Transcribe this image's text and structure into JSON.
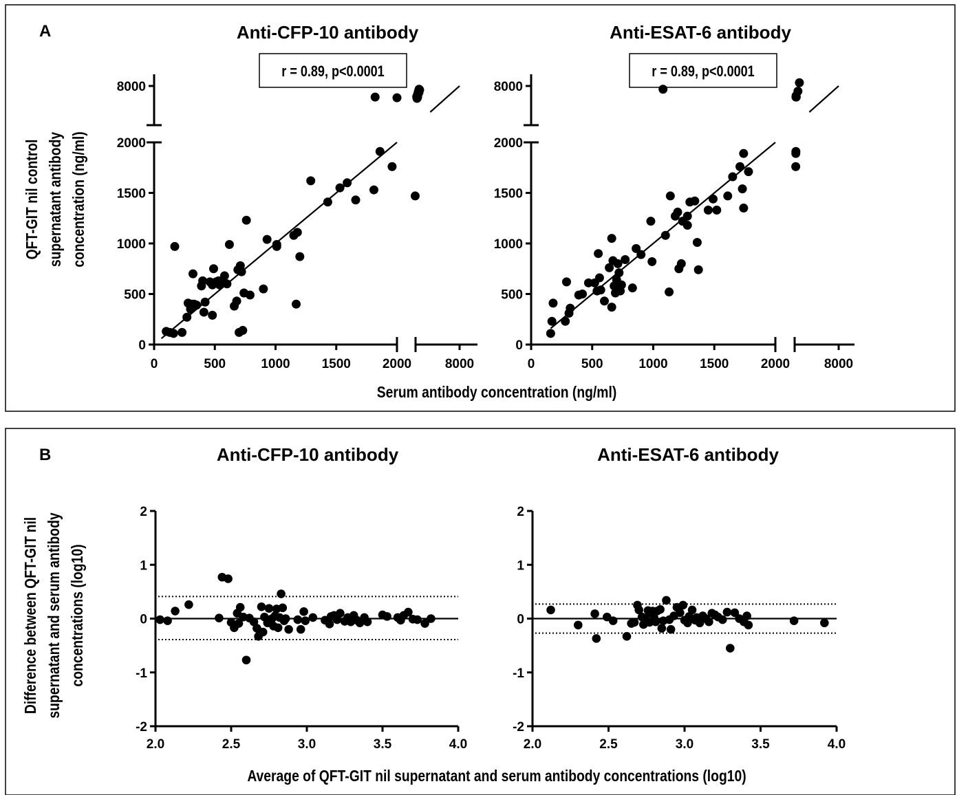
{
  "panels": {
    "a": {
      "letter": "A",
      "xlabel": "Serum antibody concentration (ng/ml)",
      "ylabel_lines": [
        "QFT-GIT nil control",
        "supernatant antibody",
        "concentration (ng/ml)"
      ]
    },
    "b": {
      "letter": "B",
      "xlabel": "Average of QFT-GIT nil supernatant and serum antibody concentrations (log10)",
      "ylabel_lines": [
        "Difference between QFT-GIT nil",
        "supernatant and serum antibody",
        "concentrations (log10)"
      ]
    }
  },
  "chart_data": [
    {
      "type": "scatter",
      "panel": "A",
      "title": "Anti-CFP-10 antibody",
      "annotation": "r = 0.89, p<0.0001",
      "axis_break": true,
      "x_ticks": [
        "0",
        "500",
        "1000",
        "1500",
        "2000",
        "8000"
      ],
      "y_ticks": [
        "0",
        "500",
        "1000",
        "1500",
        "2000",
        "8000"
      ],
      "xlim": [
        0,
        2000
      ],
      "ylim": [
        0,
        2000
      ],
      "upper_segment": {
        "ticks": [
          8000
        ],
        "approx_range": [
          4000,
          8000
        ]
      },
      "regression_line": {
        "from": [
          60,
          60
        ],
        "to": [
          2000,
          2000
        ],
        "upper_from": [
          4000,
          4000
        ],
        "upper_to": [
          8000,
          8000
        ]
      },
      "points": [
        [
          100,
          130
        ],
        [
          130,
          120
        ],
        [
          160,
          110
        ],
        [
          170,
          970
        ],
        [
          230,
          120
        ],
        [
          270,
          270
        ],
        [
          280,
          410
        ],
        [
          300,
          350
        ],
        [
          310,
          400
        ],
        [
          330,
          400
        ],
        [
          320,
          700
        ],
        [
          350,
          390
        ],
        [
          390,
          580
        ],
        [
          400,
          630
        ],
        [
          410,
          320
        ],
        [
          420,
          420
        ],
        [
          460,
          620
        ],
        [
          480,
          590
        ],
        [
          480,
          290
        ],
        [
          490,
          750
        ],
        [
          510,
          620
        ],
        [
          530,
          630
        ],
        [
          540,
          590
        ],
        [
          560,
          610
        ],
        [
          580,
          680
        ],
        [
          600,
          600
        ],
        [
          620,
          990
        ],
        [
          660,
          380
        ],
        [
          680,
          430
        ],
        [
          690,
          740
        ],
        [
          700,
          120
        ],
        [
          710,
          780
        ],
        [
          720,
          720
        ],
        [
          730,
          140
        ],
        [
          740,
          510
        ],
        [
          760,
          1230
        ],
        [
          790,
          490
        ],
        [
          900,
          550
        ],
        [
          930,
          1040
        ],
        [
          1010,
          990
        ],
        [
          1010,
          970
        ],
        [
          1150,
          1080
        ],
        [
          1170,
          400
        ],
        [
          1180,
          1110
        ],
        [
          1200,
          870
        ],
        [
          1290,
          1620
        ],
        [
          1430,
          1410
        ],
        [
          1530,
          1550
        ],
        [
          1590,
          1600
        ],
        [
          1660,
          1430
        ],
        [
          1810,
          1530
        ],
        [
          1860,
          1910
        ],
        [
          1960,
          1760
        ],
        [
          2150,
          1470
        ]
      ],
      "upper_points": [
        [
          1820,
          6300
        ],
        [
          2000,
          6200
        ],
        [
          2160,
          6300
        ],
        [
          2180,
          6450
        ],
        [
          2200,
          6100
        ],
        [
          2220,
          6350
        ],
        [
          2250,
          6200
        ],
        [
          2280,
          6300
        ],
        [
          2300,
          6700
        ],
        [
          2330,
          6900
        ],
        [
          2360,
          6800
        ],
        [
          2400,
          7200
        ],
        [
          2430,
          7100
        ],
        [
          2460,
          7000
        ],
        [
          2480,
          7500
        ],
        [
          2520,
          7350
        ],
        [
          2560,
          7400
        ]
      ]
    },
    {
      "type": "scatter",
      "panel": "A",
      "title": "Anti-ESAT-6 antibody",
      "annotation": "r = 0.89, p<0.0001",
      "axis_break": true,
      "x_ticks": [
        "0",
        "500",
        "1000",
        "1500",
        "2000",
        "8000"
      ],
      "y_ticks": [
        "0",
        "500",
        "1000",
        "1500",
        "2000",
        "8000"
      ],
      "xlim": [
        0,
        2000
      ],
      "ylim": [
        0,
        2000
      ],
      "upper_segment": {
        "ticks": [
          8000
        ],
        "approx_range": [
          4000,
          8000
        ]
      },
      "regression_line": {
        "from": [
          160,
          160
        ],
        "to": [
          2000,
          2000
        ],
        "upper_from": [
          4000,
          4000
        ],
        "upper_to": [
          8000,
          8000
        ]
      },
      "points": [
        [
          160,
          110
        ],
        [
          170,
          230
        ],
        [
          180,
          410
        ],
        [
          280,
          230
        ],
        [
          290,
          620
        ],
        [
          310,
          310
        ],
        [
          320,
          360
        ],
        [
          390,
          490
        ],
        [
          420,
          500
        ],
        [
          470,
          610
        ],
        [
          520,
          610
        ],
        [
          540,
          530
        ],
        [
          550,
          900
        ],
        [
          560,
          660
        ],
        [
          570,
          540
        ],
        [
          600,
          430
        ],
        [
          640,
          760
        ],
        [
          660,
          370
        ],
        [
          660,
          1050
        ],
        [
          670,
          830
        ],
        [
          680,
          580
        ],
        [
          690,
          510
        ],
        [
          700,
          640
        ],
        [
          710,
          800
        ],
        [
          720,
          710
        ],
        [
          730,
          530
        ],
        [
          740,
          590
        ],
        [
          770,
          840
        ],
        [
          830,
          560
        ],
        [
          860,
          950
        ],
        [
          900,
          890
        ],
        [
          980,
          1220
        ],
        [
          990,
          820
        ],
        [
          1100,
          1080
        ],
        [
          1130,
          520
        ],
        [
          1140,
          1470
        ],
        [
          1180,
          1270
        ],
        [
          1200,
          1310
        ],
        [
          1210,
          750
        ],
        [
          1230,
          800
        ],
        [
          1240,
          1220
        ],
        [
          1280,
          1270
        ],
        [
          1280,
          1180
        ],
        [
          1300,
          1410
        ],
        [
          1340,
          1420
        ],
        [
          1360,
          1010
        ],
        [
          1370,
          740
        ],
        [
          1450,
          1330
        ],
        [
          1490,
          1440
        ],
        [
          1520,
          1330
        ],
        [
          1610,
          1470
        ],
        [
          1650,
          1660
        ],
        [
          1710,
          1760
        ],
        [
          1730,
          1540
        ],
        [
          1740,
          1350
        ],
        [
          1740,
          1890
        ],
        [
          1780,
          1710
        ]
      ],
      "upper_points": [
        [
          1080,
          7500
        ],
        [
          2150,
          1760
        ],
        [
          2160,
          1890
        ],
        [
          2170,
          1910
        ],
        [
          2180,
          6300
        ],
        [
          2200,
          6500
        ],
        [
          2220,
          6300
        ],
        [
          2450,
          7200
        ],
        [
          2650,
          8500
        ]
      ]
    },
    {
      "type": "scatter",
      "panel": "B",
      "title": "Anti-CFP-10 antibody",
      "xlim": [
        2.0,
        4.0
      ],
      "ylim": [
        -2,
        2
      ],
      "x_ticks": [
        "2.0",
        "2.5",
        "3.0",
        "3.5",
        "4.0"
      ],
      "y_ticks": [
        "-2",
        "-1",
        "0",
        "1",
        "2"
      ],
      "mean_line": 0.0,
      "limits_of_agreement": [
        0.41,
        -0.39
      ],
      "points": [
        [
          2.03,
          -0.02
        ],
        [
          2.08,
          -0.04
        ],
        [
          2.13,
          0.14
        ],
        [
          2.22,
          0.26
        ],
        [
          2.42,
          0.01
        ],
        [
          2.44,
          0.77
        ],
        [
          2.48,
          0.74
        ],
        [
          2.5,
          -0.07
        ],
        [
          2.52,
          -0.17
        ],
        [
          2.54,
          0.1
        ],
        [
          2.55,
          -0.09
        ],
        [
          2.56,
          0.21
        ],
        [
          2.58,
          0.03
        ],
        [
          2.6,
          -0.77
        ],
        [
          2.62,
          0.01
        ],
        [
          2.65,
          -0.06
        ],
        [
          2.67,
          -0.18
        ],
        [
          2.68,
          -0.33
        ],
        [
          2.7,
          0.22
        ],
        [
          2.71,
          -0.25
        ],
        [
          2.72,
          0.03
        ],
        [
          2.74,
          -0.08
        ],
        [
          2.75,
          0.19
        ],
        [
          2.76,
          -0.03
        ],
        [
          2.77,
          0.0
        ],
        [
          2.78,
          -0.14
        ],
        [
          2.79,
          0.05
        ],
        [
          2.8,
          0.18
        ],
        [
          2.81,
          -0.17
        ],
        [
          2.82,
          0.02
        ],
        [
          2.83,
          0.46
        ],
        [
          2.84,
          0.2
        ],
        [
          2.85,
          -0.04
        ],
        [
          2.86,
          0.0
        ],
        [
          2.88,
          -0.2
        ],
        [
          2.94,
          -0.02
        ],
        [
          2.96,
          -0.2
        ],
        [
          2.98,
          0.13
        ],
        [
          2.99,
          -0.04
        ],
        [
          3.04,
          0.02
        ],
        [
          3.12,
          -0.03
        ],
        [
          3.15,
          -0.1
        ],
        [
          3.16,
          0.04
        ],
        [
          3.18,
          0.06
        ],
        [
          3.2,
          -0.02
        ],
        [
          3.22,
          0.1
        ],
        [
          3.25,
          -0.05
        ],
        [
          3.27,
          0.02
        ],
        [
          3.29,
          -0.06
        ],
        [
          3.31,
          0.06
        ],
        [
          3.33,
          -0.03
        ],
        [
          3.35,
          -0.08
        ],
        [
          3.38,
          0.02
        ],
        [
          3.4,
          -0.06
        ],
        [
          3.5,
          0.07
        ],
        [
          3.53,
          0.04
        ],
        [
          3.6,
          0.02
        ],
        [
          3.62,
          -0.03
        ],
        [
          3.64,
          0.06
        ],
        [
          3.67,
          0.12
        ],
        [
          3.7,
          -0.01
        ],
        [
          3.73,
          -0.02
        ],
        [
          3.78,
          -0.09
        ],
        [
          3.82,
          0.0
        ]
      ]
    },
    {
      "type": "scatter",
      "panel": "B",
      "title": "Anti-ESAT-6 antibody",
      "xlim": [
        2.0,
        4.0
      ],
      "ylim": [
        -2,
        2
      ],
      "x_ticks": [
        "2.0",
        "2.5",
        "3.0",
        "3.5",
        "4.0"
      ],
      "y_ticks": [
        "-2",
        "-1",
        "0",
        "1",
        "2"
      ],
      "mean_line": 0.0,
      "limits_of_agreement": [
        0.27,
        -0.27
      ],
      "points": [
        [
          2.12,
          0.16
        ],
        [
          2.3,
          -0.12
        ],
        [
          2.41,
          0.09
        ],
        [
          2.42,
          -0.37
        ],
        [
          2.49,
          0.03
        ],
        [
          2.53,
          -0.04
        ],
        [
          2.62,
          -0.33
        ],
        [
          2.65,
          -0.09
        ],
        [
          2.67,
          -0.07
        ],
        [
          2.69,
          0.25
        ],
        [
          2.7,
          0.16
        ],
        [
          2.72,
          0.03
        ],
        [
          2.73,
          -0.11
        ],
        [
          2.74,
          0.01
        ],
        [
          2.75,
          -0.04
        ],
        [
          2.76,
          0.15
        ],
        [
          2.77,
          -0.07
        ],
        [
          2.78,
          0.1
        ],
        [
          2.79,
          0.14
        ],
        [
          2.8,
          0.01
        ],
        [
          2.81,
          -0.06
        ],
        [
          2.82,
          0.14
        ],
        [
          2.84,
          0.17
        ],
        [
          2.85,
          -0.18
        ],
        [
          2.86,
          -0.04
        ],
        [
          2.88,
          0.34
        ],
        [
          2.9,
          -0.02
        ],
        [
          2.91,
          -0.2
        ],
        [
          2.93,
          0.05
        ],
        [
          2.95,
          0.21
        ],
        [
          2.97,
          0.11
        ],
        [
          2.99,
          0.25
        ],
        [
          3.0,
          -0.03
        ],
        [
          3.02,
          -0.08
        ],
        [
          3.03,
          0.04
        ],
        [
          3.05,
          0.16
        ],
        [
          3.07,
          -0.03
        ],
        [
          3.08,
          0.02
        ],
        [
          3.1,
          -0.08
        ],
        [
          3.12,
          0.05
        ],
        [
          3.14,
          0.0
        ],
        [
          3.16,
          -0.06
        ],
        [
          3.18,
          0.1
        ],
        [
          3.2,
          0.07
        ],
        [
          3.22,
          0.03
        ],
        [
          3.25,
          -0.02
        ],
        [
          3.28,
          0.12
        ],
        [
          3.3,
          -0.55
        ],
        [
          3.33,
          0.11
        ],
        [
          3.36,
          0.0
        ],
        [
          3.39,
          -0.06
        ],
        [
          3.41,
          0.05
        ],
        [
          3.42,
          -0.12
        ],
        [
          3.72,
          -0.04
        ],
        [
          3.92,
          -0.08
        ]
      ]
    }
  ]
}
